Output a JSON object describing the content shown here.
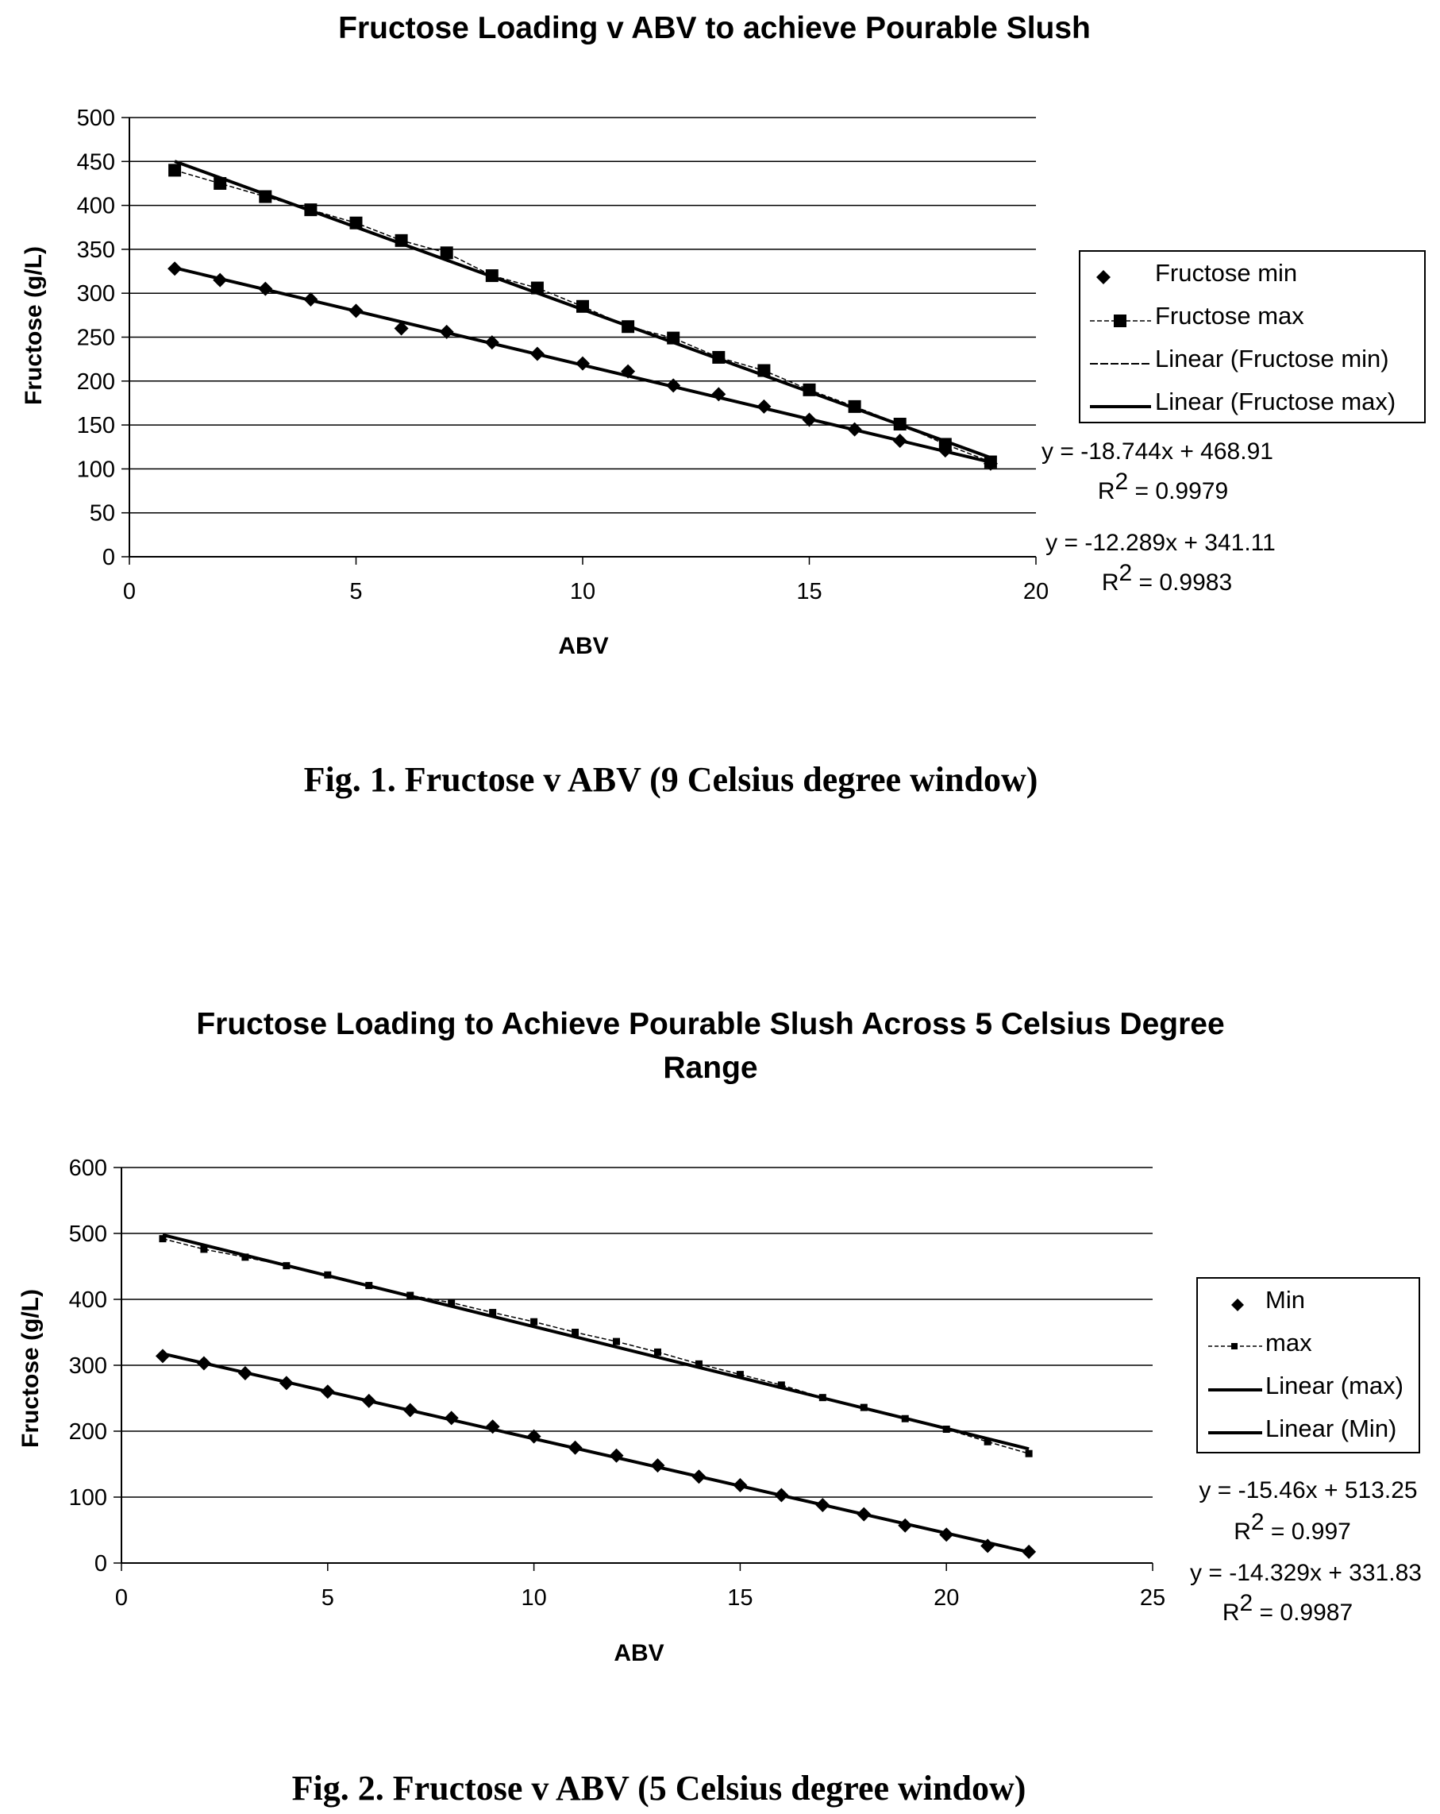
{
  "chart_data": [
    {
      "type": "scatter",
      "title": "Fructose Loading v ABV to achieve Pourable Slush",
      "xlabel": "ABV",
      "ylabel": "Fructose (g/L)",
      "xlim": [
        0,
        20
      ],
      "ylim": [
        0,
        500
      ],
      "xticks": [
        "0",
        "5",
        "10",
        "15",
        "20"
      ],
      "yticks": [
        "0",
        "50",
        "100",
        "150",
        "200",
        "250",
        "300",
        "350",
        "400",
        "450",
        "500"
      ],
      "grid": "horizontal",
      "legend_position": "right",
      "legend": [
        "Fructose min",
        "Fructose max",
        "Linear (Fructose min)",
        "Linear (Fructose max)"
      ],
      "series": [
        {
          "name": "Fructose min",
          "marker": "diamond",
          "line": false,
          "x": [
            1,
            2,
            3,
            4,
            5,
            6,
            7,
            8,
            9,
            10,
            11,
            12,
            13,
            14,
            15,
            16,
            17,
            18,
            19
          ],
          "y": [
            328,
            315,
            305,
            293,
            280,
            260,
            256,
            244,
            231,
            220,
            211,
            195,
            185,
            171,
            156,
            145,
            132,
            121,
            106
          ]
        },
        {
          "name": "Fructose max",
          "marker": "square",
          "line": true,
          "x": [
            1,
            2,
            3,
            4,
            5,
            6,
            7,
            8,
            9,
            10,
            11,
            12,
            13,
            14,
            15,
            16,
            17,
            18,
            19
          ],
          "y": [
            440,
            425,
            410,
            395,
            380,
            360,
            346,
            320,
            306,
            285,
            262,
            249,
            227,
            212,
            190,
            171,
            151,
            128,
            108
          ]
        }
      ],
      "trendlines": [
        {
          "name": "Linear (Fructose min)",
          "slope": -12.289,
          "intercept": 341.11,
          "equation": "y = -12.289x + 341.11",
          "r2_label": "R",
          "r2_value": " = 0.9983"
        },
        {
          "name": "Linear (Fructose max)",
          "slope": -18.744,
          "intercept": 468.91,
          "equation": "y = -18.744x + 468.91",
          "r2_label": "R",
          "r2_value": " = 0.9979"
        }
      ],
      "caption": "Fig. 1. Fructose v ABV (9 Celsius degree window)"
    },
    {
      "type": "scatter",
      "title_lines": [
        "Fructose Loading to Achieve Pourable Slush Across 5 Celsius Degree",
        "Range"
      ],
      "xlabel": "ABV",
      "ylabel": "Fructose (g/L)",
      "xlim": [
        0,
        25
      ],
      "ylim": [
        0,
        600
      ],
      "xticks": [
        "0",
        "5",
        "10",
        "15",
        "20",
        "25"
      ],
      "yticks": [
        "0",
        "100",
        "200",
        "300",
        "400",
        "500",
        "600"
      ],
      "grid": "horizontal",
      "legend_position": "right",
      "legend": [
        "Min",
        "max",
        "Linear (max)",
        "Linear (Min)"
      ],
      "series": [
        {
          "name": "Min",
          "marker": "diamond",
          "line": false,
          "x": [
            1,
            2,
            3,
            4,
            5,
            6,
            7,
            8,
            9,
            10,
            11,
            12,
            13,
            14,
            15,
            16,
            17,
            18,
            19,
            20,
            21,
            22
          ],
          "y": [
            314,
            303,
            288,
            273,
            260,
            246,
            232,
            220,
            207,
            192,
            175,
            163,
            148,
            131,
            118,
            103,
            88,
            74,
            57,
            43,
            26,
            17
          ]
        },
        {
          "name": "max",
          "marker": "square-small",
          "line": true,
          "x": [
            1,
            2,
            3,
            4,
            5,
            6,
            7,
            8,
            9,
            10,
            11,
            12,
            13,
            14,
            15,
            16,
            17,
            18,
            19,
            20,
            21,
            22
          ],
          "y": [
            492,
            476,
            464,
            451,
            437,
            421,
            406,
            395,
            380,
            366,
            350,
            336,
            320,
            302,
            286,
            270,
            251,
            236,
            219,
            203,
            184,
            166
          ]
        }
      ],
      "trendlines": [
        {
          "name": "Linear (max)",
          "slope": -15.46,
          "intercept": 513.25,
          "equation": "y = -15.46x + 513.25",
          "r2_label": "R",
          "r2_value": " = 0.997"
        },
        {
          "name": "Linear (Min)",
          "slope": -14.329,
          "intercept": 331.83,
          "equation": "y = -14.329x + 331.83",
          "r2_label": "R",
          "r2_value": " = 0.9987"
        }
      ],
      "caption": "Fig. 2. Fructose v ABV (5 Celsius degree window)"
    }
  ]
}
